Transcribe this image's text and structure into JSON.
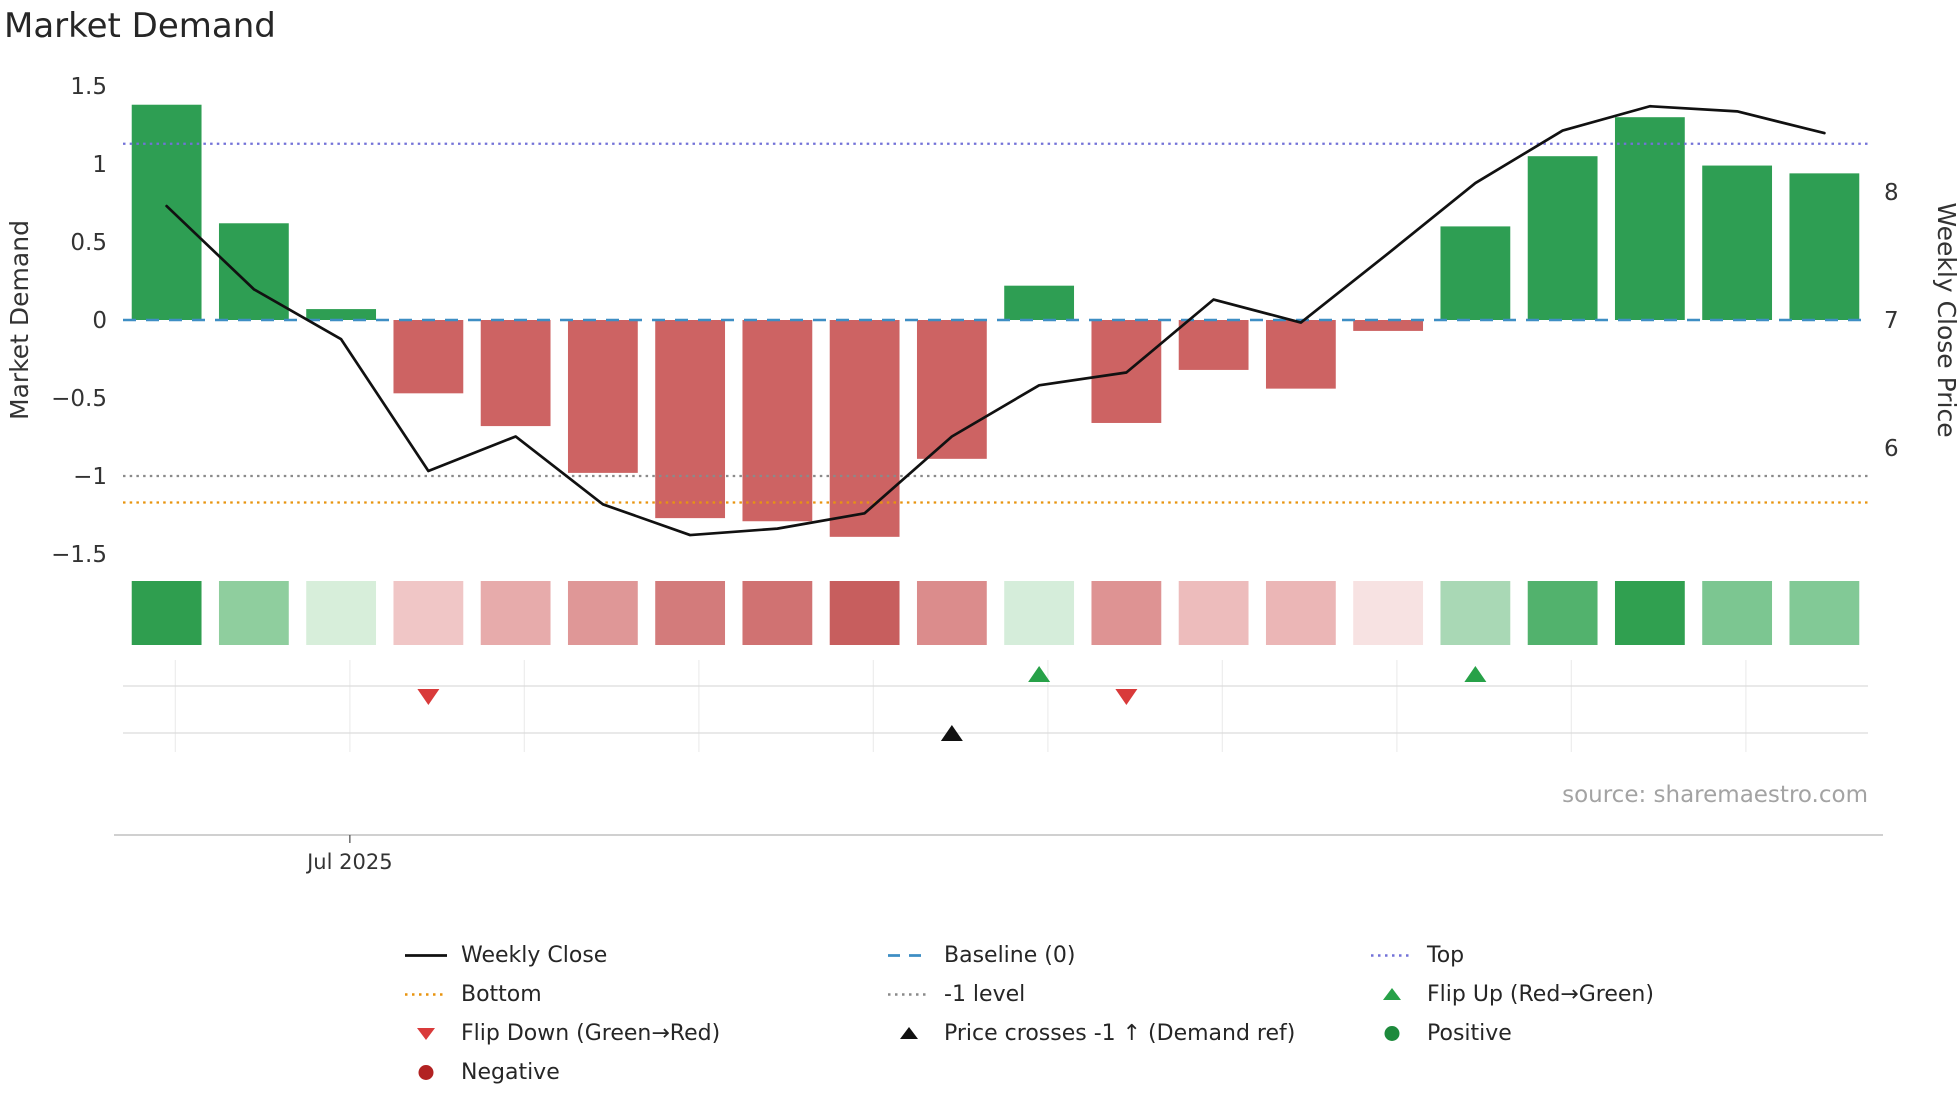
{
  "title": "Market Demand",
  "source": "source: sharemaestro.com",
  "axes": {
    "left_label": "Market Demand",
    "right_label": "Weekly Close Price",
    "left_tick_labels": [
      "1.5",
      "1",
      "0.5",
      "0",
      "−0.5",
      "−1",
      "−1.5"
    ],
    "left_tick_values": [
      1.5,
      1,
      0.5,
      0,
      -0.5,
      -1,
      -1.5
    ],
    "right_tick_labels": [
      "8",
      "7",
      "6"
    ],
    "right_tick_values": [
      8,
      7,
      6
    ],
    "x_tick_label": "Jul 2025"
  },
  "colors": {
    "positive_bar": "#2e9e53",
    "negative_bar": "#cd6363",
    "line": "#111111",
    "baseline": "#3e8ec4",
    "top": "#7372d8",
    "bottom": "#e8940f",
    "minus1": "#8a8a8a",
    "flip_up": "#27a148",
    "flip_down": "#d93a3a",
    "cross": "#111111",
    "positive_dot": "#1d8a3c",
    "negative_dot": "#b22222"
  },
  "legend": {
    "weekly_close": "Weekly Close",
    "baseline": "Baseline (0)",
    "top": "Top",
    "bottom": "Bottom",
    "minus1": "-1 level",
    "flip_up": "Flip Up (Red→Green)",
    "flip_down": "Flip Down (Green→Red)",
    "price_cross": "Price crosses -1 ↑ (Demand ref)",
    "positive": "Positive",
    "negative": "Negative"
  },
  "chart_data": {
    "type": "bar+line",
    "title": "Market Demand",
    "x_unit": "week",
    "weeks": [
      1,
      2,
      3,
      4,
      5,
      6,
      7,
      8,
      9,
      10,
      11,
      12,
      13,
      14,
      15,
      16,
      17,
      18,
      19,
      20
    ],
    "series": [
      {
        "name": "Market Demand",
        "type": "bar",
        "axis": "left",
        "values": [
          1.38,
          0.62,
          0.07,
          -0.47,
          -0.68,
          -0.98,
          -1.27,
          -1.29,
          -1.39,
          -0.89,
          0.22,
          -0.66,
          -0.32,
          -0.44,
          -0.07,
          0.6,
          1.05,
          1.3,
          0.99,
          0.94
        ]
      },
      {
        "name": "Weekly Close",
        "type": "line",
        "axis": "right",
        "values": [
          7.89,
          7.24,
          6.85,
          5.82,
          6.09,
          5.56,
          5.32,
          5.37,
          5.49,
          6.09,
          6.49,
          6.59,
          7.16,
          6.98,
          7.52,
          8.07,
          8.48,
          8.67,
          8.63,
          8.46
        ]
      }
    ],
    "reference_levels": {
      "baseline": 0,
      "top": 1.13,
      "bottom": -1.17,
      "minus1": -1
    },
    "left_ylim": [
      -1.5,
      1.5
    ],
    "right_ticks": [
      6,
      7,
      8
    ],
    "heatmap_colors": [
      "#2f9e4f",
      "#8fce9e",
      "#d7eeda",
      "#f0c6c6",
      "#e7abab",
      "#df9797",
      "#d37b7b",
      "#d07272",
      "#c75e5e",
      "#db8c8c",
      "#d5edda",
      "#de9393",
      "#edbcbc",
      "#ebb6b6",
      "#f7e2e2",
      "#a9d8b5",
      "#52b26d",
      "#30a050",
      "#7cc691",
      "#82c996"
    ],
    "markers": {
      "flip_up_weeks": [
        11,
        16
      ],
      "flip_down_weeks": [
        4,
        12
      ],
      "price_cross_up_weeks": [
        10
      ]
    },
    "x_axis": {
      "tick_label": "Jul 2025",
      "tick_week": 3.1
    },
    "legend_position": "bottom",
    "grid": "off"
  }
}
